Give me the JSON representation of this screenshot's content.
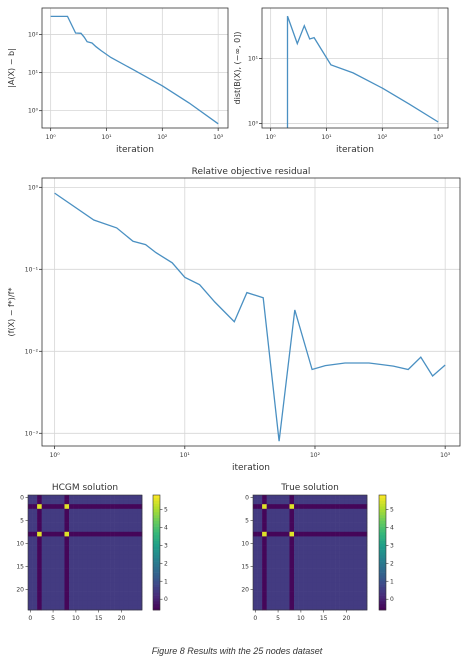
{
  "caption": "Figure 8 Results with the 25 nodes dataset",
  "chart_data": [
    {
      "type": "line",
      "title": "",
      "xlabel": "iteration",
      "ylabel": "|A(X) − b|",
      "xscale": "log",
      "yscale": "log",
      "xlim": [
        0.7,
        1500
      ],
      "ylim": [
        0.35,
        500
      ],
      "grid": true,
      "color": "#4a90c2",
      "xticks": [
        {
          "v": 1,
          "t": "10⁰"
        },
        {
          "v": 10,
          "t": "10¹"
        },
        {
          "v": 100,
          "t": "10²"
        },
        {
          "v": 1000,
          "t": "10³"
        }
      ],
      "yticks": [
        {
          "v": 1,
          "t": "10⁰"
        },
        {
          "v": 10,
          "t": "10¹"
        },
        {
          "v": 100,
          "t": "10²"
        }
      ],
      "x": [
        1,
        2,
        2.8,
        3.5,
        4,
        4.5,
        5.5,
        6.5,
        8,
        12,
        30,
        100,
        300,
        1000
      ],
      "y": [
        300,
        300,
        110,
        108,
        85,
        65,
        60,
        48,
        38,
        25,
        12,
        4.5,
        1.6,
        0.45
      ]
    },
    {
      "type": "line",
      "title": "",
      "xlabel": "iteration",
      "ylabel": "dist(B(X), (−∞, 0])",
      "xscale": "log",
      "yscale": "log",
      "xlim": [
        0.7,
        1500
      ],
      "ylim": [
        0.85,
        60
      ],
      "grid": true,
      "color": "#4a90c2",
      "xticks": [
        {
          "v": 1,
          "t": "10⁰"
        },
        {
          "v": 10,
          "t": "10¹"
        },
        {
          "v": 100,
          "t": "10²"
        },
        {
          "v": 1000,
          "t": "10³"
        }
      ],
      "yticks": [
        {
          "v": 1,
          "t": "10⁰"
        },
        {
          "v": 10,
          "t": "10¹"
        }
      ],
      "x": [
        2,
        2,
        3,
        4,
        5,
        6,
        7,
        8,
        12,
        30,
        100,
        300,
        1000
      ],
      "y": [
        0.85,
        45,
        17,
        32,
        20,
        21,
        17,
        14,
        8,
        6,
        3.5,
        2,
        1.05
      ]
    },
    {
      "type": "line",
      "title": "Relative objective residual",
      "xlabel": "iteration",
      "ylabel": "(f(X) − f*)/f*",
      "xscale": "log",
      "yscale": "log",
      "xlim": [
        0.8,
        1300
      ],
      "ylim": [
        0.0007,
        1.3
      ],
      "grid": true,
      "color": "#4a90c2",
      "xticks": [
        {
          "v": 1,
          "t": "10⁰"
        },
        {
          "v": 10,
          "t": "10¹"
        },
        {
          "v": 100,
          "t": "10²"
        },
        {
          "v": 1000,
          "t": "10³"
        }
      ],
      "yticks": [
        {
          "v": 0.001,
          "t": "10⁻³"
        },
        {
          "v": 0.01,
          "t": "10⁻²"
        },
        {
          "v": 0.1,
          "t": "10⁻¹"
        },
        {
          "v": 1,
          "t": "10⁰"
        }
      ],
      "x": [
        1,
        2,
        3,
        4,
        5,
        6,
        8,
        10,
        13,
        17,
        24,
        30,
        40,
        53,
        70,
        95,
        120,
        170,
        260,
        400,
        520,
        650,
        800,
        1000
      ],
      "y": [
        0.85,
        0.4,
        0.32,
        0.22,
        0.2,
        0.16,
        0.12,
        0.08,
        0.065,
        0.04,
        0.023,
        0.052,
        0.045,
        0.0008,
        0.032,
        0.006,
        0.0067,
        0.0072,
        0.0072,
        0.0066,
        0.006,
        0.0085,
        0.005,
        0.0068
      ]
    },
    {
      "type": "heatmap",
      "title": "HCGM solution",
      "size": 25,
      "xticks": [
        0,
        5,
        10,
        15,
        20
      ],
      "yticks": [
        0,
        5,
        10,
        15,
        20
      ],
      "colorbar": {
        "min": -0.6,
        "max": 5.8,
        "ticks": [
          0,
          1,
          2,
          3,
          4,
          5
        ]
      },
      "base_value": 0.5,
      "dark_lines": [
        2,
        8
      ],
      "dark_value": -0.5,
      "hot_cells": [
        [
          2,
          2
        ],
        [
          2,
          8
        ],
        [
          8,
          2
        ],
        [
          8,
          8
        ]
      ],
      "hot_value": 5.5
    },
    {
      "type": "heatmap",
      "title": "True solution",
      "size": 25,
      "xticks": [
        0,
        5,
        10,
        15,
        20
      ],
      "yticks": [
        0,
        5,
        10,
        15,
        20
      ],
      "colorbar": {
        "min": -0.6,
        "max": 5.8,
        "ticks": [
          0,
          1,
          2,
          3,
          4,
          5
        ]
      },
      "base_value": 0.5,
      "dark_lines": [
        2,
        8
      ],
      "dark_value": -0.5,
      "hot_cells": [
        [
          2,
          2
        ],
        [
          2,
          8
        ],
        [
          8,
          2
        ],
        [
          8,
          8
        ]
      ],
      "hot_value": 5.5
    }
  ]
}
